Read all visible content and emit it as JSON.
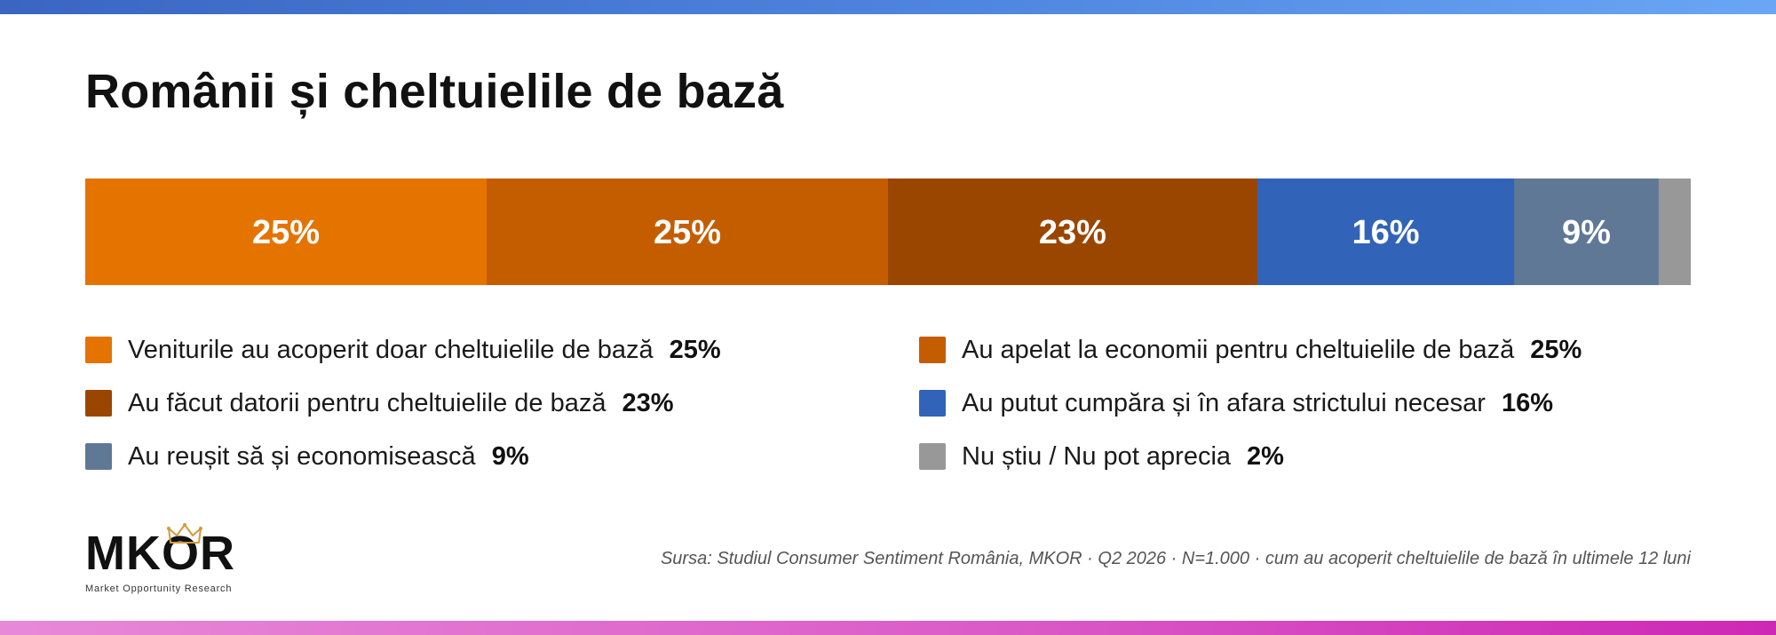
{
  "title": "Românii și cheltuielile de bază",
  "chart_data": {
    "type": "bar",
    "orientation": "horizontal-stacked-100",
    "title": "Românii și cheltuielile de bază",
    "categories": [
      "Veniturile au acoperit doar cheltuielile de bază",
      "Au apelat la economii pentru cheltuielile de bază",
      "Au făcut datorii pentru cheltuielile de bază",
      "Au putut cumpăra și în afara strictului necesar",
      "Au reușit să și economisească",
      "Nu știu / Nu pot aprecia"
    ],
    "values": [
      25,
      25,
      23,
      16,
      9,
      2
    ],
    "value_labels": [
      "25%",
      "25%",
      "23%",
      "16%",
      "9%",
      ""
    ],
    "legend_values": [
      "25%",
      "25%",
      "23%",
      "16%",
      "9%",
      "2%"
    ],
    "colors": [
      "#e57300",
      "#c45d00",
      "#9b4600",
      "#3164b8",
      "#5f7896",
      "#989898"
    ],
    "ylim": [
      0,
      100
    ],
    "grid": false,
    "legend": "bottom"
  },
  "legend_order": [
    0,
    1,
    2,
    3,
    4,
    5
  ],
  "footer": {
    "source": "Sursa: Studiul Consumer Sentiment România, MKOR · Q2 2026 · N=1.000 · cum au acoperit cheltuielile de bază în ultimele 12 luni",
    "logo_text": "MKOR",
    "logo_subtitle": "Market Opportunity Research"
  },
  "icons": {
    "logo_crown": "crown-icon"
  }
}
